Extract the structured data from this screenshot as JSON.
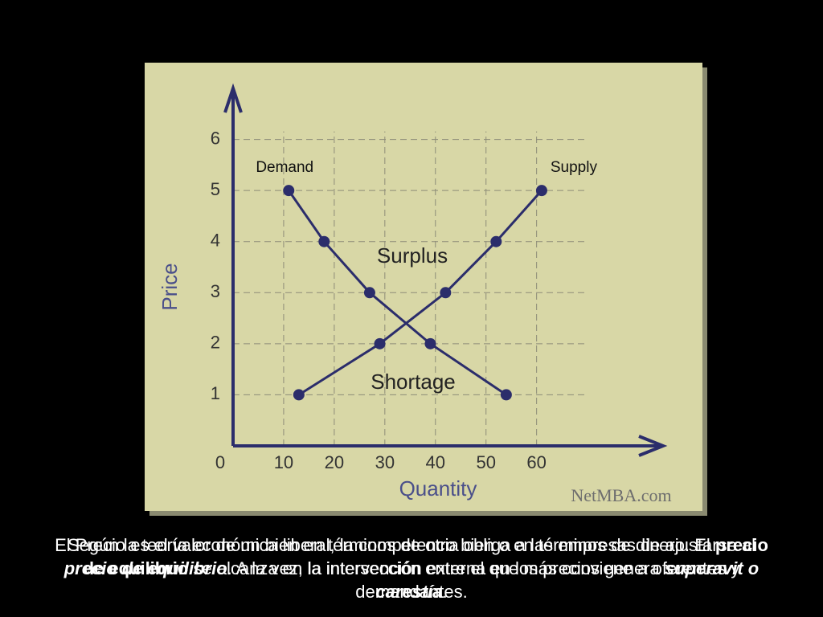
{
  "chart_data": {
    "type": "line",
    "x_label": "Quantity",
    "y_label": "Price",
    "series": [
      {
        "name": "Demand",
        "color": "#2b2d6b",
        "x": [
          11,
          18,
          27,
          39,
          54
        ],
        "values": [
          5,
          4,
          3,
          2,
          1
        ]
      },
      {
        "name": "Supply",
        "color": "#2b2d6b",
        "x": [
          13,
          29,
          42,
          52,
          61
        ],
        "values": [
          1,
          2,
          3,
          4,
          5
        ]
      }
    ],
    "annotations": [
      "Surplus",
      "Shortage",
      "NetMBA.com"
    ],
    "xlim": [
      0,
      85
    ],
    "ylim": [
      0,
      7
    ],
    "xticks": [
      0,
      10,
      20,
      30,
      40,
      50,
      60
    ],
    "yticks": [
      1,
      2,
      3,
      4,
      5,
      6
    ],
    "grid": true
  },
  "caption": {
    "paragraph_1": [
      "Según la teoría económica liberal, la competencia obliga a las empresas de ajustarse al ",
      "precio de equilibrio",
      ". A la vez, la intervención externa en los precios genera ",
      "superavit o carestía",
      "."
    ],
    "paragraph_2": [
      "El Precio es el valor de un bien en términos de otro bien o en términos de dinero. El ",
      "precio de equilibrio",
      " se alcanza en la intersección entre el que más conviene a oferentes y demandantes."
    ]
  }
}
